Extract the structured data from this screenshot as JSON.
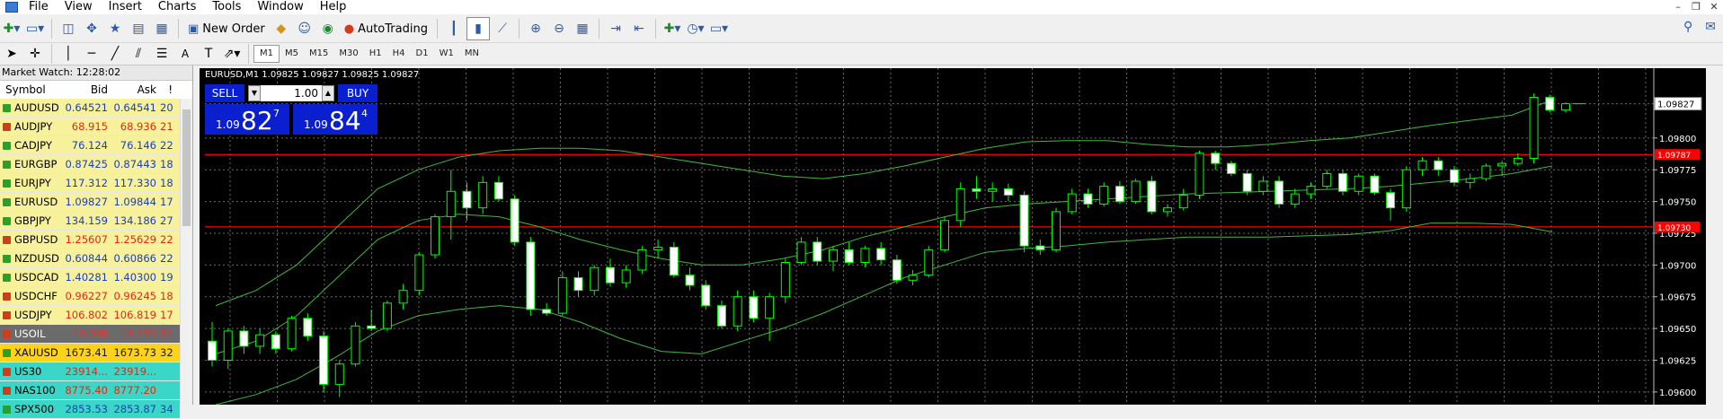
{
  "menu": [
    "File",
    "View",
    "Insert",
    "Charts",
    "Tools",
    "Window",
    "Help"
  ],
  "toolbar": {
    "new_order": "New Order",
    "auto_trading": "AutoTrading"
  },
  "timeframes": [
    "M1",
    "M5",
    "M15",
    "M30",
    "H1",
    "H4",
    "D1",
    "W1",
    "MN"
  ],
  "active_timeframe": "M1",
  "market_watch": {
    "title": "Market Watch: 12:28:02",
    "headers": {
      "symbol": "Symbol",
      "bid": "Bid",
      "ask": "Ask",
      "spread": "!"
    },
    "rows": [
      {
        "symbol": "AUDUSD",
        "bid": "0.64521",
        "ask": "0.64541",
        "spread": "20",
        "dir": "up",
        "bg": "#f7f19c",
        "fg": "#1c3fb5"
      },
      {
        "symbol": "AUDJPY",
        "bid": "68.915",
        "ask": "68.936",
        "spread": "21",
        "dir": "dn",
        "bg": "#f7f19c",
        "fg": "#e02a0e"
      },
      {
        "symbol": "CADJPY",
        "bid": "76.124",
        "ask": "76.146",
        "spread": "22",
        "dir": "up",
        "bg": "#f7f19c",
        "fg": "#1c3fb5"
      },
      {
        "symbol": "EURGBP",
        "bid": "0.87425",
        "ask": "0.87443",
        "spread": "18",
        "dir": "up",
        "bg": "#f7f19c",
        "fg": "#1c3fb5"
      },
      {
        "symbol": "EURJPY",
        "bid": "117.312",
        "ask": "117.330",
        "spread": "18",
        "dir": "up",
        "bg": "#f7f19c",
        "fg": "#1c3fb5"
      },
      {
        "symbol": "EURUSD",
        "bid": "1.09827",
        "ask": "1.09844",
        "spread": "17",
        "dir": "up",
        "bg": "#f7f19c",
        "fg": "#1c3fb5"
      },
      {
        "symbol": "GBPJPY",
        "bid": "134.159",
        "ask": "134.186",
        "spread": "27",
        "dir": "up",
        "bg": "#f7f19c",
        "fg": "#1c3fb5"
      },
      {
        "symbol": "GBPUSD",
        "bid": "1.25607",
        "ask": "1.25629",
        "spread": "22",
        "dir": "dn",
        "bg": "#f7f19c",
        "fg": "#e02a0e"
      },
      {
        "symbol": "NZDUSD",
        "bid": "0.60844",
        "ask": "0.60866",
        "spread": "22",
        "dir": "up",
        "bg": "#f7f19c",
        "fg": "#1c3fb5"
      },
      {
        "symbol": "USDCAD",
        "bid": "1.40281",
        "ask": "1.40300",
        "spread": "19",
        "dir": "up",
        "bg": "#f7f19c",
        "fg": "#1c3fb5"
      },
      {
        "symbol": "USDCHF",
        "bid": "0.96227",
        "ask": "0.96245",
        "spread": "18",
        "dir": "dn",
        "bg": "#f7f19c",
        "fg": "#e02a0e"
      },
      {
        "symbol": "USDJPY",
        "bid": "106.802",
        "ask": "106.819",
        "spread": "17",
        "dir": "dn",
        "bg": "#f7f19c",
        "fg": "#e02a0e"
      },
      {
        "symbol": "USOIL",
        "bid": "14.046",
        "ask": "14.127",
        "spread": "81",
        "dir": "dn",
        "bg": "#6b6b6b",
        "fg": "#ff2a2a",
        "symfg": "#ffffff"
      },
      {
        "symbol": "XAUUSD",
        "bid": "1673.41",
        "ask": "1673.73",
        "spread": "32",
        "dir": "up",
        "bg": "#ffd21a",
        "fg": "#1a1a1a"
      },
      {
        "symbol": "US30",
        "bid": "23914...",
        "ask": "23919...",
        "spread": "",
        "dir": "dn",
        "bg": "#3ad6c8",
        "fg": "#e02a0e"
      },
      {
        "symbol": "NAS100",
        "bid": "8775.40",
        "ask": "8777.20",
        "spread": "",
        "dir": "dn",
        "bg": "#3ad6c8",
        "fg": "#e02a0e"
      },
      {
        "symbol": "SPX500",
        "bid": "2853.53",
        "ask": "2853.87",
        "spread": "34",
        "dir": "up",
        "bg": "#3ad6c8",
        "fg": "#1c3fb5"
      }
    ]
  },
  "chart_info": "EURUSD,M1  1.09825 1.09827 1.09825 1.09827",
  "trade_panel": {
    "sell_label": "SELL",
    "buy_label": "BUY",
    "lot": "1.00",
    "sell_prefix": "1.09",
    "sell_big": "82",
    "sell_sup": "7",
    "buy_prefix": "1.09",
    "buy_big": "84",
    "buy_sup": "4"
  },
  "chart_data": {
    "type": "candlestick",
    "symbol": "EURUSD",
    "timeframe": "M1",
    "ylim": [
      1.0959,
      1.09855
    ],
    "yticks": [
      "1.09827",
      "1.09800",
      "1.09775",
      "1.09750",
      "1.09725",
      "1.09700",
      "1.09675",
      "1.09650",
      "1.09625",
      "1.09600"
    ],
    "price_labels": {
      "current": "1.09827",
      "line1": "1.09787",
      "line2": "1.09730"
    },
    "hlines": [
      1.09787,
      1.0973
    ],
    "candles": [
      [
        1.0964,
        1.09655,
        1.0962,
        1.09625
      ],
      [
        1.09625,
        1.0965,
        1.09618,
        1.09648
      ],
      [
        1.09648,
        1.09652,
        1.0963,
        1.09636
      ],
      [
        1.09636,
        1.0965,
        1.0963,
        1.09645
      ],
      [
        1.09645,
        1.09648,
        1.0963,
        1.09634
      ],
      [
        1.09634,
        1.0966,
        1.09632,
        1.09658
      ],
      [
        1.09658,
        1.09662,
        1.0964,
        1.09644
      ],
      [
        1.09644,
        1.09648,
        1.096,
        1.09606
      ],
      [
        1.09606,
        1.09625,
        1.09596,
        1.09622
      ],
      [
        1.09622,
        1.09655,
        1.0962,
        1.09652
      ],
      [
        1.09652,
        1.09665,
        1.09648,
        1.0965
      ],
      [
        1.0965,
        1.09672,
        1.09648,
        1.0967
      ],
      [
        1.0967,
        1.09685,
        1.09665,
        1.0968
      ],
      [
        1.0968,
        1.0971,
        1.09676,
        1.09708
      ],
      [
        1.09708,
        1.0974,
        1.09705,
        1.09738
      ],
      [
        1.09738,
        1.09775,
        1.0972,
        1.09758
      ],
      [
        1.09758,
        1.09765,
        1.09735,
        1.09745
      ],
      [
        1.09745,
        1.0977,
        1.0974,
        1.09765
      ],
      [
        1.09765,
        1.0977,
        1.0975,
        1.09752
      ],
      [
        1.09752,
        1.09755,
        1.09715,
        1.09718
      ],
      [
        1.09718,
        1.09722,
        1.0966,
        1.09665
      ],
      [
        1.09665,
        1.0967,
        1.0966,
        1.09662
      ],
      [
        1.09662,
        1.09695,
        1.0966,
        1.0969
      ],
      [
        1.0969,
        1.09695,
        1.09675,
        1.0968
      ],
      [
        1.0968,
        1.097,
        1.09676,
        1.09698
      ],
      [
        1.09698,
        1.09705,
        1.09683,
        1.09686
      ],
      [
        1.09686,
        1.097,
        1.09682,
        1.09696
      ],
      [
        1.09696,
        1.09715,
        1.09693,
        1.09712
      ],
      [
        1.09712,
        1.0972,
        1.09705,
        1.09714
      ],
      [
        1.09714,
        1.09718,
        1.0969,
        1.09692
      ],
      [
        1.09692,
        1.09698,
        1.0968,
        1.09684
      ],
      [
        1.09684,
        1.09688,
        1.09665,
        1.09668
      ],
      [
        1.09668,
        1.09672,
        1.0965,
        1.09652
      ],
      [
        1.09652,
        1.0968,
        1.09648,
        1.09675
      ],
      [
        1.09675,
        1.0968,
        1.09655,
        1.09658
      ],
      [
        1.09658,
        1.09678,
        1.0964,
        1.09675
      ],
      [
        1.09675,
        1.09705,
        1.0967,
        1.09702
      ],
      [
        1.09702,
        1.09722,
        1.097,
        1.09718
      ],
      [
        1.09718,
        1.09722,
        1.097,
        1.09703
      ],
      [
        1.09703,
        1.09715,
        1.09695,
        1.09712
      ],
      [
        1.09712,
        1.09718,
        1.097,
        1.09702
      ],
      [
        1.09702,
        1.09715,
        1.09698,
        1.09713
      ],
      [
        1.09713,
        1.09718,
        1.097,
        1.09704
      ],
      [
        1.09704,
        1.09708,
        1.09685,
        1.09688
      ],
      [
        1.09688,
        1.09696,
        1.09684,
        1.09692
      ],
      [
        1.09692,
        1.09715,
        1.0969,
        1.09712
      ],
      [
        1.09712,
        1.09738,
        1.0971,
        1.09735
      ],
      [
        1.09735,
        1.09765,
        1.0973,
        1.0976
      ],
      [
        1.0976,
        1.0977,
        1.09752,
        1.09758
      ],
      [
        1.09758,
        1.09765,
        1.0975,
        1.0976
      ],
      [
        1.0976,
        1.09764,
        1.0975,
        1.09755
      ],
      [
        1.09755,
        1.09758,
        1.0971,
        1.09715
      ],
      [
        1.09715,
        1.0972,
        1.09708,
        1.09712
      ],
      [
        1.09712,
        1.09745,
        1.0971,
        1.09742
      ],
      [
        1.09742,
        1.0976,
        1.0974,
        1.09756
      ],
      [
        1.09756,
        1.0976,
        1.09745,
        1.09748
      ],
      [
        1.09748,
        1.09765,
        1.09746,
        1.09762
      ],
      [
        1.09762,
        1.09766,
        1.09748,
        1.0975
      ],
      [
        1.0975,
        1.09768,
        1.09748,
        1.09766
      ],
      [
        1.09766,
        1.0977,
        1.0974,
        1.09742
      ],
      [
        1.09742,
        1.09748,
        1.09738,
        1.09745
      ],
      [
        1.09745,
        1.0976,
        1.09743,
        1.09755
      ],
      [
        1.09755,
        1.0979,
        1.09752,
        1.09788
      ],
      [
        1.09788,
        1.0979,
        1.09775,
        1.0978
      ],
      [
        1.0978,
        1.09782,
        1.0977,
        1.09772
      ],
      [
        1.09772,
        1.09775,
        1.09755,
        1.09758
      ],
      [
        1.09758,
        1.0977,
        1.09755,
        1.09766
      ],
      [
        1.09766,
        1.0977,
        1.09745,
        1.09748
      ],
      [
        1.09748,
        1.0976,
        1.09745,
        1.09756
      ],
      [
        1.09756,
        1.09765,
        1.09752,
        1.09762
      ],
      [
        1.09762,
        1.09775,
        1.0976,
        1.09772
      ],
      [
        1.09772,
        1.09775,
        1.09755,
        1.09758
      ],
      [
        1.09758,
        1.09772,
        1.09755,
        1.0977
      ],
      [
        1.0977,
        1.09772,
        1.09755,
        1.09757
      ],
      [
        1.09757,
        1.0976,
        1.09735,
        1.09745
      ],
      [
        1.09745,
        1.09778,
        1.09742,
        1.09775
      ],
      [
        1.09775,
        1.09785,
        1.0977,
        1.09782
      ],
      [
        1.09782,
        1.09785,
        1.0977,
        1.09775
      ],
      [
        1.09775,
        1.09778,
        1.09762,
        1.09765
      ],
      [
        1.09765,
        1.09772,
        1.0976,
        1.09768
      ],
      [
        1.09768,
        1.0978,
        1.09766,
        1.09778
      ],
      [
        1.09778,
        1.09782,
        1.0977,
        1.0978
      ],
      [
        1.0978,
        1.09788,
        1.09778,
        1.09784
      ],
      [
        1.09784,
        1.09835,
        1.0978,
        1.09832
      ],
      [
        1.09832,
        1.09834,
        1.0982,
        1.09822
      ],
      [
        1.09822,
        1.09828,
        1.0982,
        1.09827
      ]
    ],
    "bands": {
      "upper": [
        1.09668,
        1.0968,
        1.097,
        1.0973,
        1.0976,
        1.09775,
        1.09785,
        1.0979,
        1.09792,
        1.09792,
        1.0979,
        1.09785,
        1.0978,
        1.09775,
        1.0977,
        1.09768,
        1.09772,
        1.09778,
        1.09785,
        1.09792,
        1.09797,
        1.09798,
        1.09798,
        1.09795,
        1.09793,
        1.09793,
        1.09795,
        1.09798,
        1.098,
        1.09805,
        1.0981,
        1.09814,
        1.09818,
        1.0983
      ],
      "middle": [
        1.0963,
        1.0964,
        1.0966,
        1.0969,
        1.0972,
        1.09735,
        1.0974,
        1.09738,
        1.0973,
        1.0972,
        1.09712,
        1.09705,
        1.097,
        1.097,
        1.09705,
        1.09712,
        1.09722,
        1.0973,
        1.09738,
        1.09745,
        1.09748,
        1.0975,
        1.09752,
        1.09754,
        1.09756,
        1.09757,
        1.09758,
        1.09759,
        1.0976,
        1.09762,
        1.09765,
        1.09768,
        1.09772,
        1.09778
      ],
      "lower": [
        1.0959,
        1.09598,
        1.0961,
        1.09628,
        1.09648,
        1.0966,
        1.09665,
        1.09668,
        1.09665,
        1.09655,
        1.09642,
        1.09632,
        1.0963,
        1.0964,
        1.0965,
        1.09662,
        1.09676,
        1.0969,
        1.097,
        1.0971,
        1.09713,
        1.09715,
        1.09718,
        1.0972,
        1.09722,
        1.09722,
        1.09722,
        1.09723,
        1.09724,
        1.09727,
        1.09733,
        1.09733,
        1.09732,
        1.09726
      ]
    },
    "colors": {
      "bull": "#000000",
      "bear": "#ffffff",
      "wick": "#00ff00",
      "band": "#3fb83f",
      "grid": "#6a6a6a",
      "hline": "#ff0000"
    }
  }
}
